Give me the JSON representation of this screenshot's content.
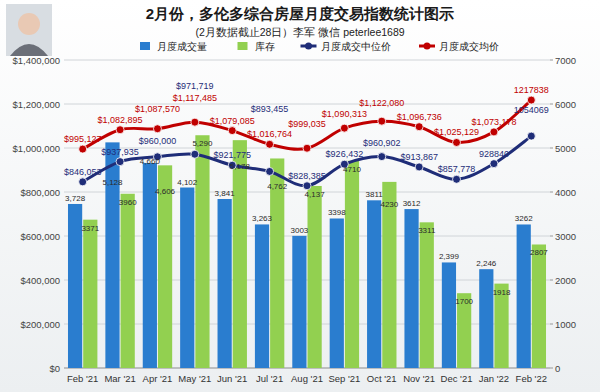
{
  "chart_data": {
    "type": "bar",
    "title": "2月份，多伦多综合房屋月度交易指数统计图示",
    "subtitle": "(2月数据截止28日）李军  微信 peterlee1689",
    "categories": [
      "Feb '21",
      "Mar '21",
      "Apr '21",
      "May '21",
      "Jun '21",
      "Jul '21",
      "Aug '21",
      "Sep '21",
      "Oct '21",
      "Nov '21",
      "Dec '21",
      "Jan '22",
      "Feb '22"
    ],
    "series": [
      {
        "name": "月度成交量",
        "type": "bar",
        "axis": "y2",
        "color": "#2a7dcf",
        "values": [
          3728,
          5128,
          4660,
          4102,
          3841,
          3263,
          3003,
          3398,
          3811,
          3612,
          2399,
          2246,
          3262
        ],
        "value_labels": [
          "3,728",
          "5,128",
          "4,660",
          "4,102",
          "3,841",
          "3,263",
          "3003",
          "3398",
          "3811",
          "3612",
          "2,399",
          "2,246",
          "3262"
        ]
      },
      {
        "name": "库存",
        "type": "bar",
        "axis": "y2",
        "color": "#92d050",
        "values": [
          3371,
          3960,
          4606,
          5290,
          5178,
          4762,
          4137,
          4710,
          4230,
          3311,
          1700,
          1918,
          2807
        ],
        "value_labels": [
          "3371",
          "3960",
          "4,606",
          "5,290",
          "5,178",
          "4,762",
          "4,137",
          "4710",
          "4230",
          "3311",
          "1700",
          "1918",
          "2807"
        ]
      },
      {
        "name": "月度成交中位价",
        "type": "line",
        "color": "#1f2d78",
        "marker": "circle",
        "values": [
          846053,
          937935,
          960000,
          971719,
          921775,
          893455,
          828385,
          926432,
          960902,
          913867,
          857778,
          928840,
          1054069
        ],
        "value_labels": [
          "$846,053",
          "$937,935",
          "$960,000",
          "$971,719",
          "$921,775",
          "$893,455",
          "$828,385",
          "$926,432",
          "$960,902",
          "$913,867",
          "$857,778",
          "928840",
          "1054069"
        ]
      },
      {
        "name": "月度成交均价",
        "type": "line",
        "color": "#c00000",
        "marker": "circle",
        "values": [
          995127,
          1082895,
          1087570,
          1117485,
          1079085,
          1016764,
          999035,
          1090313,
          1122080,
          1096736,
          1025129,
          1073178,
          1217838
        ],
        "value_labels": [
          "$995,127",
          "$1,082,895",
          "$1,087,570",
          "$1,117,485",
          "$1,079,085",
          "$1,016,764",
          "$999,035",
          "$1,090,313",
          "$1,122,080",
          "$1,096,736",
          "$1,025,129",
          "$1,073,178",
          "1217838"
        ]
      }
    ],
    "ylim": [
      0,
      1400000
    ],
    "yticks": [
      {
        "value": 0,
        "label": "$0"
      },
      {
        "value": 200000,
        "label": "$200,000"
      },
      {
        "value": 400000,
        "label": "$400,000"
      },
      {
        "value": 600000,
        "label": "$600,000"
      },
      {
        "value": 800000,
        "label": "$800,000"
      },
      {
        "value": 1000000,
        "label": "$1,000,000"
      },
      {
        "value": 1200000,
        "label": "$1,200,000"
      },
      {
        "value": 1400000,
        "label": "$1,400,000"
      }
    ],
    "y2lim": [
      0,
      7000
    ],
    "y2ticks": [
      0,
      1000,
      2000,
      3000,
      4000,
      5000,
      6000,
      7000
    ],
    "grid": true,
    "legend": "top",
    "data_labels": true
  }
}
